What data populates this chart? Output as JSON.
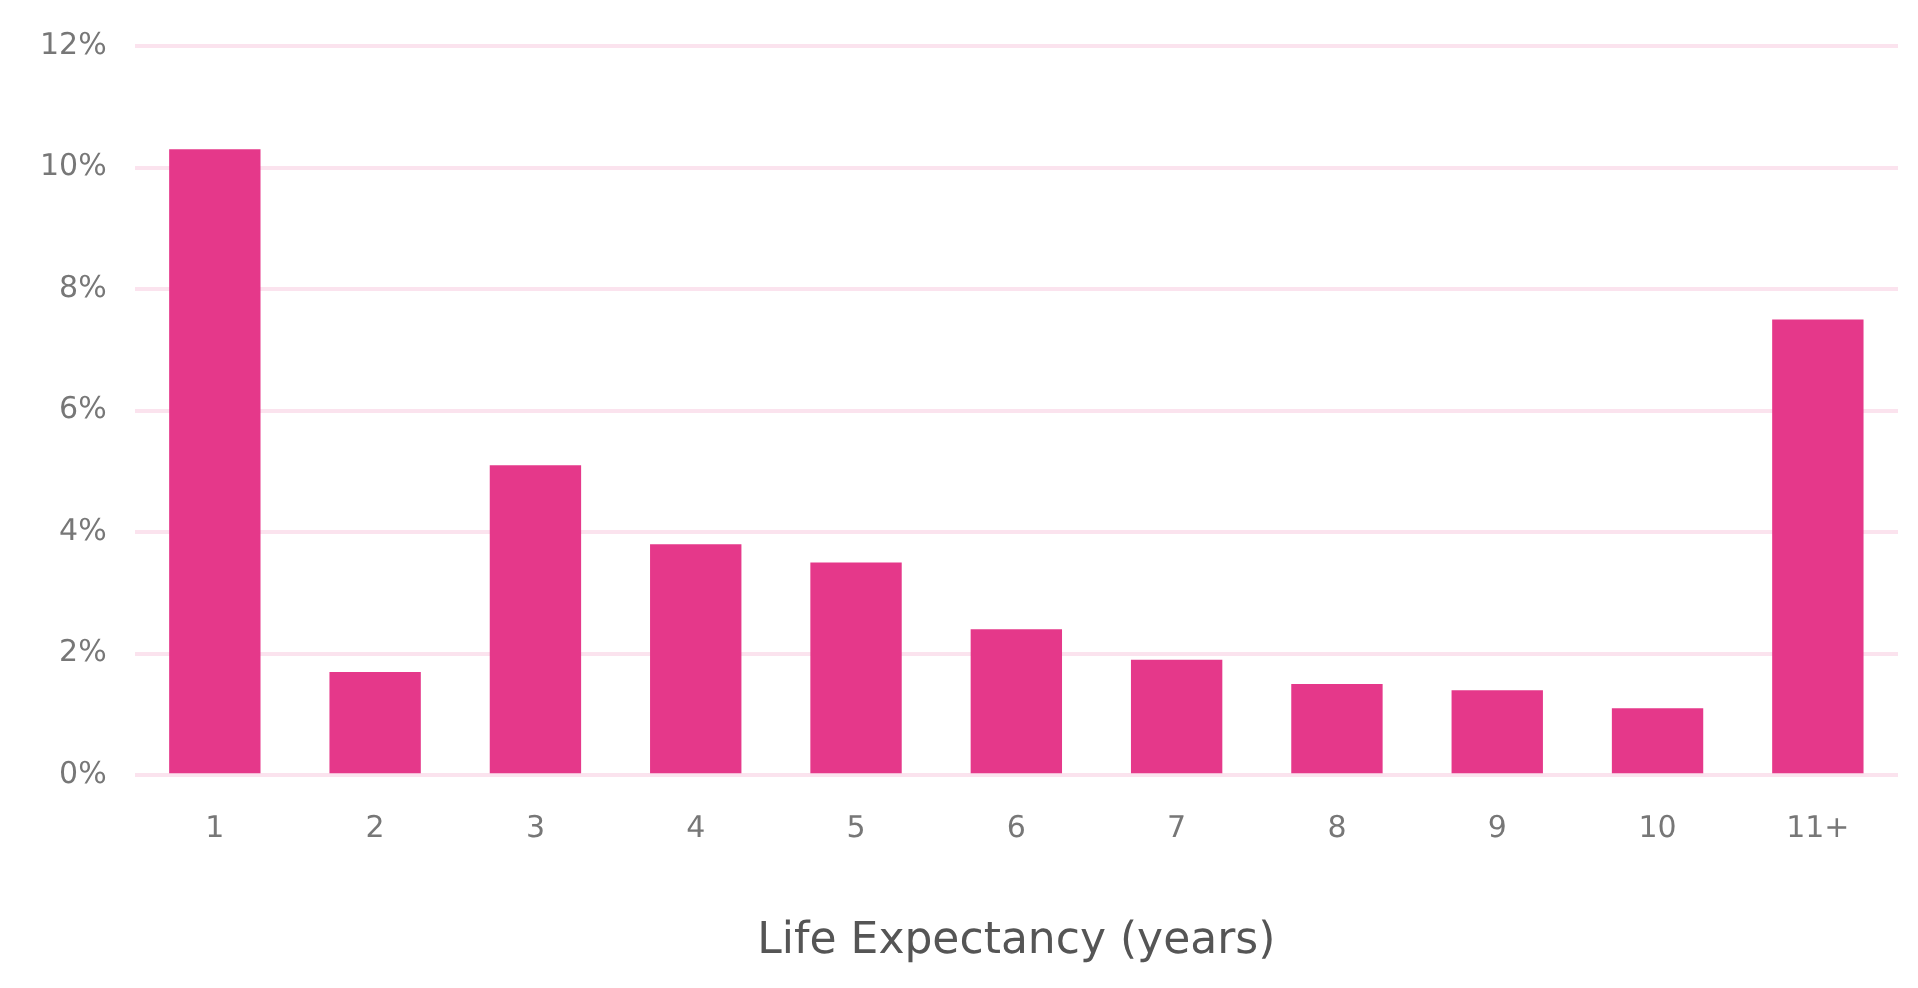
{
  "chart_data": {
    "type": "bar",
    "xlabel": "Life Expectancy (years)",
    "categories": [
      "1",
      "2",
      "3",
      "4",
      "5",
      "6",
      "7",
      "8",
      "9",
      "10",
      "11+"
    ],
    "values": [
      10.3,
      1.7,
      5.1,
      3.8,
      3.5,
      2.4,
      1.9,
      1.5,
      1.4,
      1.1,
      7.5
    ],
    "color": "#e5388a",
    "ylim": [
      0,
      12
    ],
    "yticks": [
      {
        "value": 0,
        "label": "0%"
      },
      {
        "value": 2,
        "label": "2%"
      },
      {
        "value": 4,
        "label": "4%"
      },
      {
        "value": 6,
        "label": "6%"
      },
      {
        "value": 8,
        "label": "8%"
      },
      {
        "value": 10,
        "label": "10%"
      },
      {
        "value": 12,
        "label": "12%"
      }
    ],
    "grid": "y",
    "legend": false
  }
}
